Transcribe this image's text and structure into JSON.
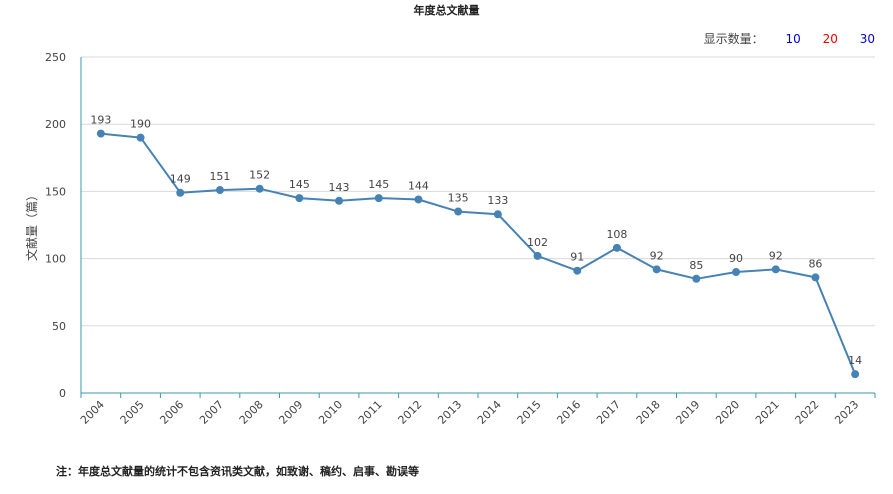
{
  "header": {
    "display_label": "显示数量：",
    "options": [
      "10",
      "20",
      "30"
    ],
    "option_colors": [
      "#0000dd",
      "#ee0000",
      "#0000dd"
    ]
  },
  "footnote": "注：年度总文献量的统计不包含资讯类文献，如致谢、稿约、启事、勘误等",
  "chart_data": {
    "type": "line",
    "title": "年度总文献量",
    "xlabel": "",
    "ylabel": "文献量（篇）",
    "categories": [
      "2004",
      "2005",
      "2006",
      "2007",
      "2008",
      "2009",
      "2010",
      "2011",
      "2012",
      "2013",
      "2014",
      "2015",
      "2016",
      "2017",
      "2018",
      "2019",
      "2020",
      "2021",
      "2022",
      "2023"
    ],
    "values": [
      193,
      190,
      149,
      151,
      152,
      145,
      143,
      145,
      144,
      135,
      133,
      102,
      91,
      108,
      92,
      85,
      90,
      92,
      86,
      14
    ],
    "ylim": [
      0,
      250
    ],
    "yticks": [
      0,
      50,
      100,
      150,
      200,
      250
    ],
    "grid": true,
    "line_color": "#4682b4",
    "axis_color": "#3a9aa8",
    "grid_color": "#d9d9d9",
    "data_labels": true
  }
}
